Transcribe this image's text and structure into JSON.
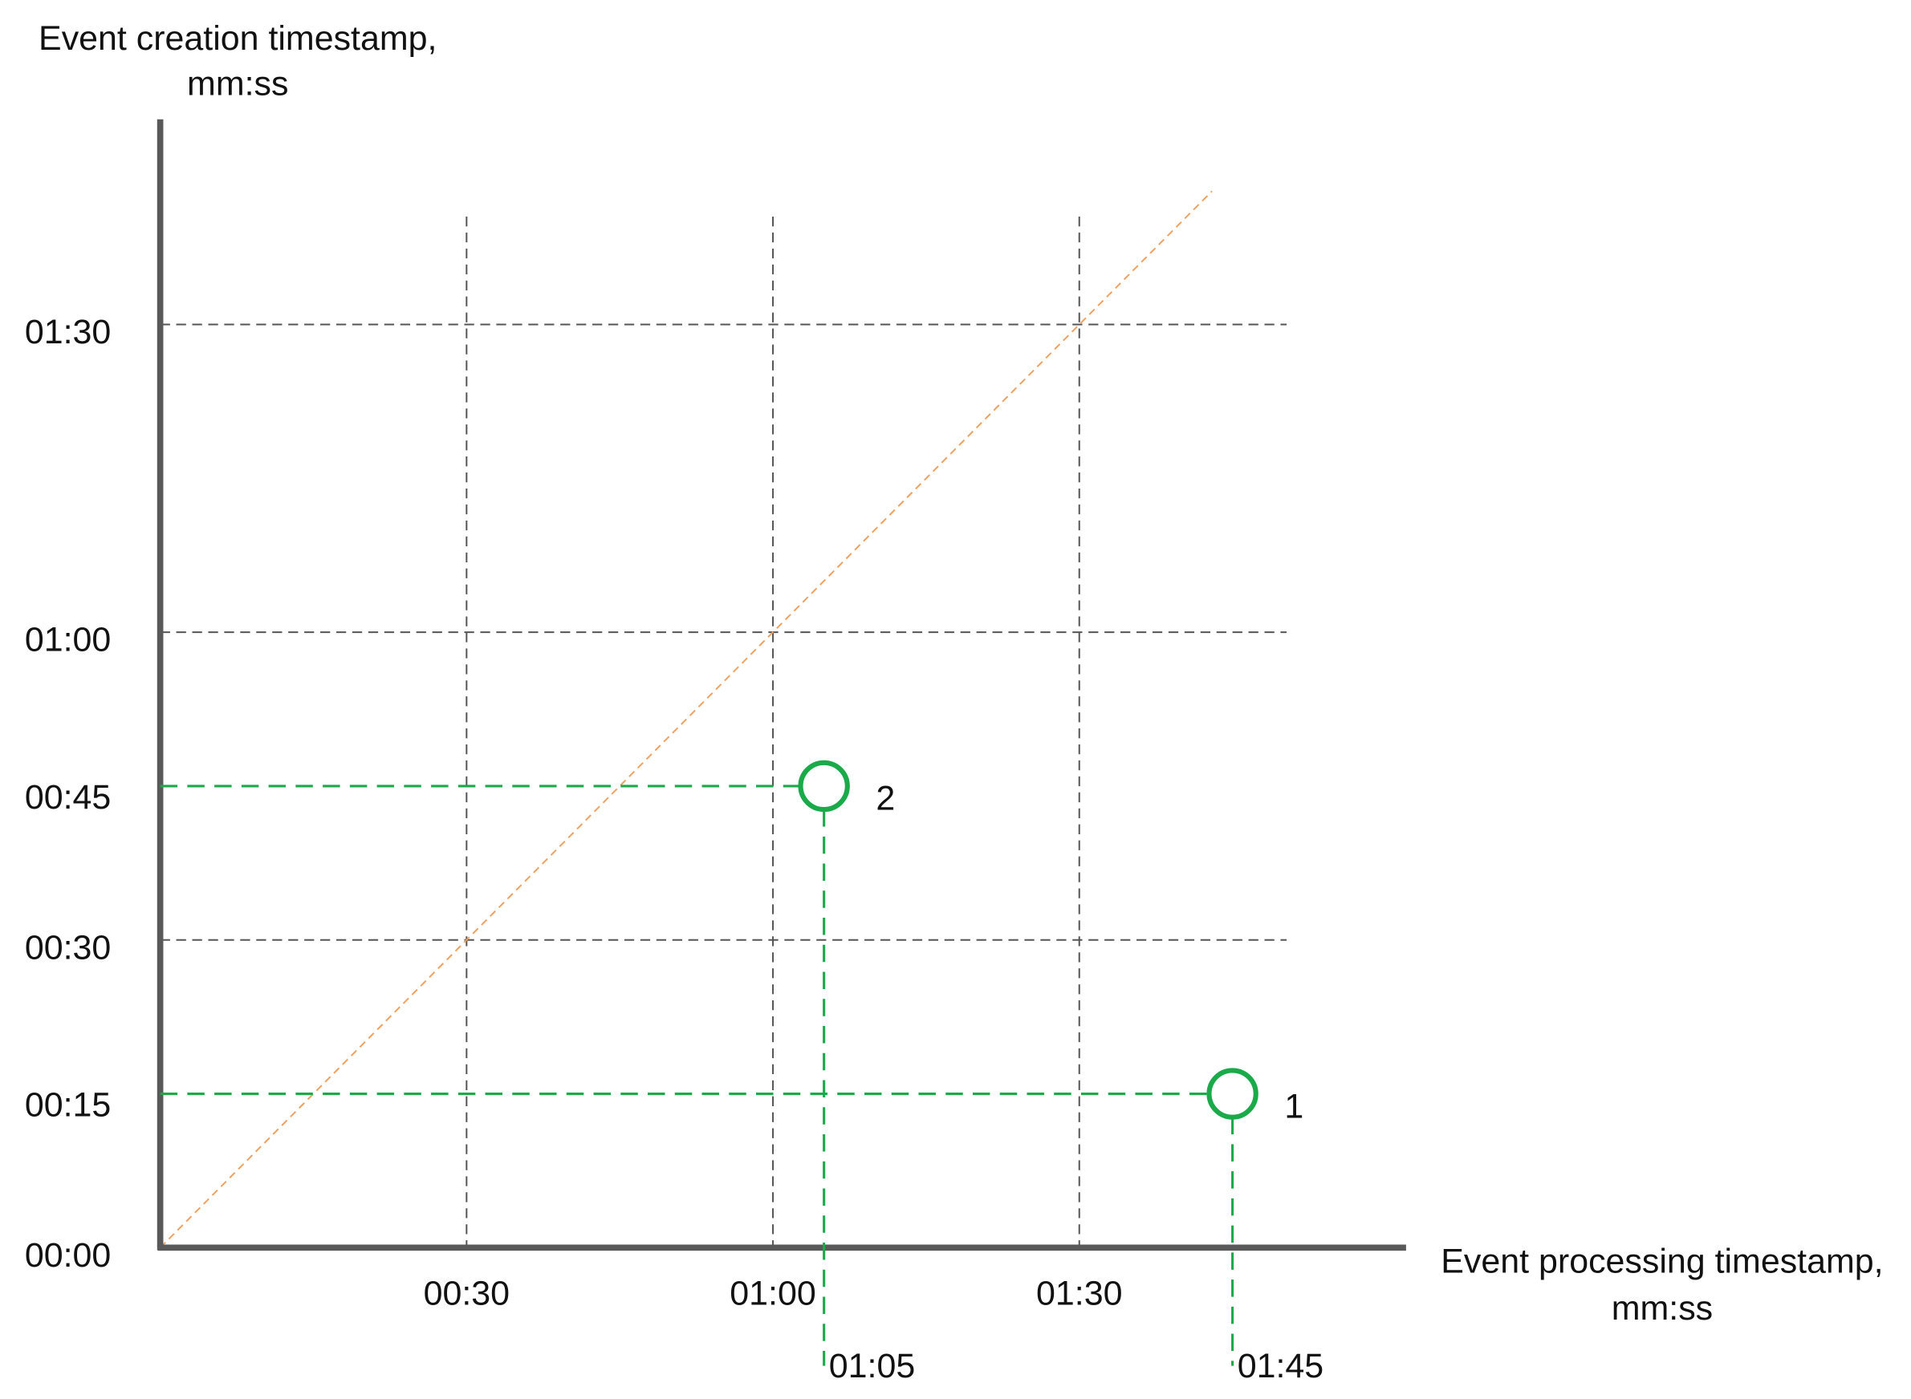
{
  "chart_data": {
    "type": "scatter",
    "x_label_lines": [
      "Event processing timestamp,",
      "mm:ss"
    ],
    "y_label_lines": [
      "Event creation timestamp,",
      "mm:ss"
    ],
    "xlim": [
      0,
      122
    ],
    "ylim": [
      0,
      110
    ],
    "xticks": [
      {
        "value": 30,
        "label": "00:30"
      },
      {
        "value": 60,
        "label": "01:00"
      },
      {
        "value": 90,
        "label": "01:30"
      }
    ],
    "yticks": [
      {
        "value": 0,
        "label": "00:00"
      },
      {
        "value": 30,
        "label": "00:30"
      },
      {
        "value": 60,
        "label": "01:00"
      },
      {
        "value": 90,
        "label": "01:30"
      }
    ],
    "grid": true,
    "points": {
      "x": [
        105,
        65
      ],
      "values": [
        15,
        45
      ],
      "labels": [
        "1",
        "2"
      ],
      "x_value_labels": [
        "01:45",
        "01:05"
      ],
      "value_labels": [
        "00:15",
        "00:45"
      ],
      "color": "#1aaa4a"
    },
    "diagonal": {
      "x": [
        0,
        103
      ],
      "values": [
        0,
        103
      ],
      "color": "#f0a060"
    }
  }
}
